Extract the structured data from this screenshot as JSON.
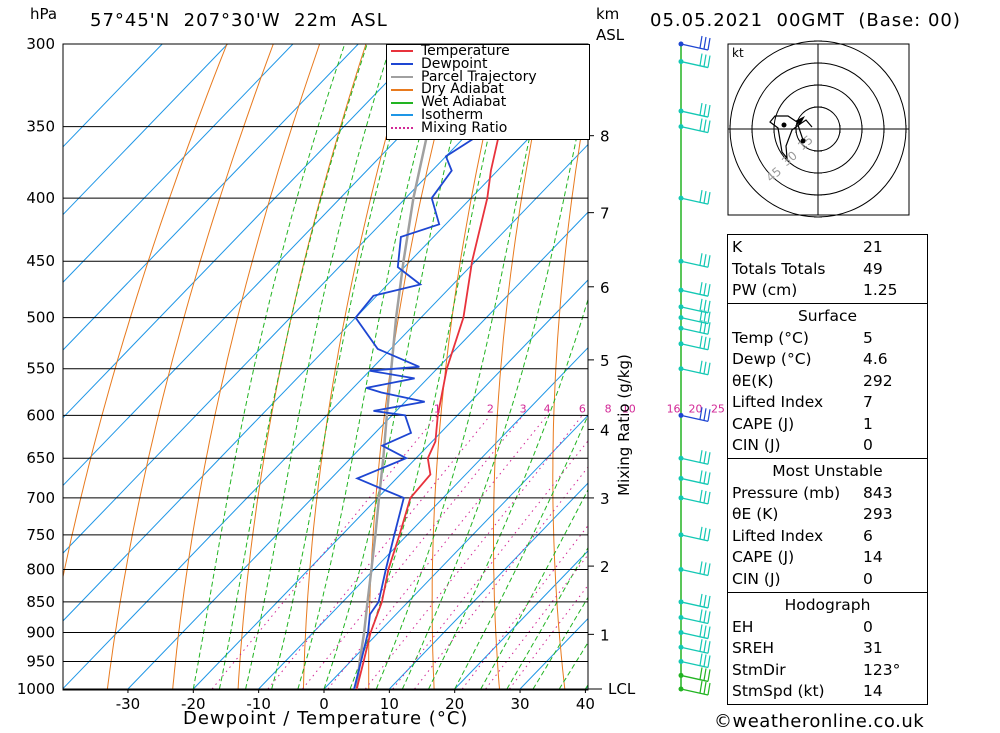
{
  "header": {
    "pressure_unit": "hPa",
    "location": "57°45'N  207°30'W  22m  ASL",
    "km_unit": "km",
    "asl_label": "ASL",
    "valid_time": "05.05.2021  00GMT  (Base: 00)"
  },
  "chart_data": {
    "type": "skew-t",
    "xlabel": "Dewpoint / Temperature (°C)",
    "ylabel": "hPa",
    "x_ticks": [
      -30,
      -20,
      -10,
      0,
      10,
      20,
      30,
      40
    ],
    "pressure_levels": [
      300,
      350,
      400,
      450,
      500,
      550,
      600,
      650,
      700,
      750,
      800,
      850,
      900,
      950,
      1000
    ],
    "km_ticks": [
      {
        "km": "1",
        "p": 903
      },
      {
        "km": "2",
        "p": 795
      },
      {
        "km": "3",
        "p": 700
      },
      {
        "km": "4",
        "p": 616
      },
      {
        "km": "5",
        "p": 541
      },
      {
        "km": "6",
        "p": 472
      },
      {
        "km": "7",
        "p": 411
      },
      {
        "km": "8",
        "p": 356
      }
    ],
    "lcl_label": "LCL",
    "lcl_pressure": 1000,
    "mixing_ratio_label": "Mixing Ratio (g/kg)",
    "mixing_ratio_values": [
      "1",
      "2",
      "3",
      "4",
      "6",
      "8",
      "10",
      "16",
      "20",
      "25"
    ],
    "legend": [
      "Temperature",
      "Dewpoint",
      "Parcel Trajectory",
      "Dry Adiabat",
      "Wet Adiabat",
      "Isotherm",
      "Mixing Ratio"
    ],
    "colors": {
      "temperature": "#e8323c",
      "dewpoint": "#1e46d2",
      "parcel": "#a0a0a0",
      "dry_adiabat": "#e87a1e",
      "wet_adiabat": "#22b422",
      "isotherm": "#1e96e6",
      "mixing_ratio": "#d22896",
      "wind_barb": "#14c8b4"
    },
    "temperature": [
      [
        1000,
        5.0
      ],
      [
        950,
        2.0
      ],
      [
        900,
        -1.2
      ],
      [
        850,
        -4.0
      ],
      [
        800,
        -7.8
      ],
      [
        750,
        -11.2
      ],
      [
        700,
        -15.0
      ],
      [
        670,
        -15.4
      ],
      [
        650,
        -18.2
      ],
      [
        630,
        -19.5
      ],
      [
        600,
        -23.0
      ],
      [
        550,
        -28.5
      ],
      [
        500,
        -33.5
      ],
      [
        450,
        -40.5
      ],
      [
        400,
        -47.5
      ],
      [
        380,
        -51.0
      ],
      [
        350,
        -56.0
      ],
      [
        320,
        -58.5
      ],
      [
        300,
        -60.0
      ]
    ],
    "dewpoint": [
      [
        1000,
        4.6
      ],
      [
        950,
        1.6
      ],
      [
        900,
        -1.6
      ],
      [
        870,
        -4.0
      ],
      [
        850,
        -4.5
      ],
      [
        800,
        -8.2
      ],
      [
        750,
        -12.0
      ],
      [
        700,
        -16.0
      ],
      [
        690,
        -20.0
      ],
      [
        675,
        -26.0
      ],
      [
        650,
        -21.5
      ],
      [
        635,
        -27.0
      ],
      [
        620,
        -24.5
      ],
      [
        600,
        -28.0
      ],
      [
        595,
        -33.5
      ],
      [
        585,
        -27.0
      ],
      [
        575,
        -35.0
      ],
      [
        570,
        -38.0
      ],
      [
        560,
        -32.0
      ],
      [
        552,
        -40.0
      ],
      [
        548,
        -33.0
      ],
      [
        530,
        -42.0
      ],
      [
        500,
        -50.0
      ],
      [
        480,
        -50.5
      ],
      [
        470,
        -45.0
      ],
      [
        455,
        -51.0
      ],
      [
        430,
        -55.0
      ],
      [
        420,
        -51.0
      ],
      [
        400,
        -56.0
      ],
      [
        380,
        -57.0
      ],
      [
        370,
        -60.0
      ],
      [
        355,
        -58.0
      ],
      [
        345,
        -70.0
      ],
      [
        325,
        -73.0
      ],
      [
        315,
        -70.0
      ],
      [
        300,
        -71.0
      ]
    ],
    "parcel": [
      [
        1000,
        5.0
      ],
      [
        950,
        1.4
      ],
      [
        900,
        -2.2
      ],
      [
        850,
        -6.2
      ],
      [
        800,
        -10.4
      ],
      [
        750,
        -14.9
      ],
      [
        700,
        -19.8
      ],
      [
        650,
        -25.0
      ],
      [
        600,
        -30.8
      ],
      [
        550,
        -37.0
      ],
      [
        500,
        -43.8
      ],
      [
        450,
        -51.0
      ],
      [
        400,
        -58.8
      ],
      [
        350,
        -67.0
      ],
      [
        300,
        -75.6
      ]
    ],
    "wind_barbs": [
      1000,
      975,
      950,
      925,
      900,
      875,
      850,
      800,
      750,
      700,
      675,
      650,
      600,
      550,
      525,
      510,
      500,
      490,
      475,
      450,
      400,
      350,
      340,
      310,
      300
    ],
    "hodograph": {
      "unit": "kt",
      "ring_labels": [
        "15",
        "30",
        "45"
      ]
    }
  },
  "indices": [
    {
      "label": "K",
      "value": "21"
    },
    {
      "label": "Totals Totals",
      "value": "49"
    },
    {
      "label": "PW (cm)",
      "value": "1.25"
    }
  ],
  "surface": {
    "title": "Surface",
    "rows": [
      {
        "label": "Temp (°C)",
        "value": "5"
      },
      {
        "label": "Dewp (°C)",
        "value": "4.6"
      },
      {
        "label": "θE(K)",
        "value": "292"
      },
      {
        "label": "Lifted Index",
        "value": "7"
      },
      {
        "label": "CAPE (J)",
        "value": "1"
      },
      {
        "label": "CIN (J)",
        "value": "0"
      }
    ]
  },
  "most_unstable": {
    "title": "Most Unstable",
    "rows": [
      {
        "label": "Pressure (mb)",
        "value": "843"
      },
      {
        "label": "θE (K)",
        "value": "293"
      },
      {
        "label": "Lifted Index",
        "value": "6"
      },
      {
        "label": "CAPE (J)",
        "value": "14"
      },
      {
        "label": "CIN (J)",
        "value": "0"
      }
    ]
  },
  "hodograph_table": {
    "title": "Hodograph",
    "rows": [
      {
        "label": "EH",
        "value": "0"
      },
      {
        "label": "SREH",
        "value": "31"
      },
      {
        "label": "StmDir",
        "value": "123°"
      },
      {
        "label": "StmSpd (kt)",
        "value": "14"
      }
    ]
  },
  "footer": {
    "copyright": "©weatheronline.co.uk"
  }
}
